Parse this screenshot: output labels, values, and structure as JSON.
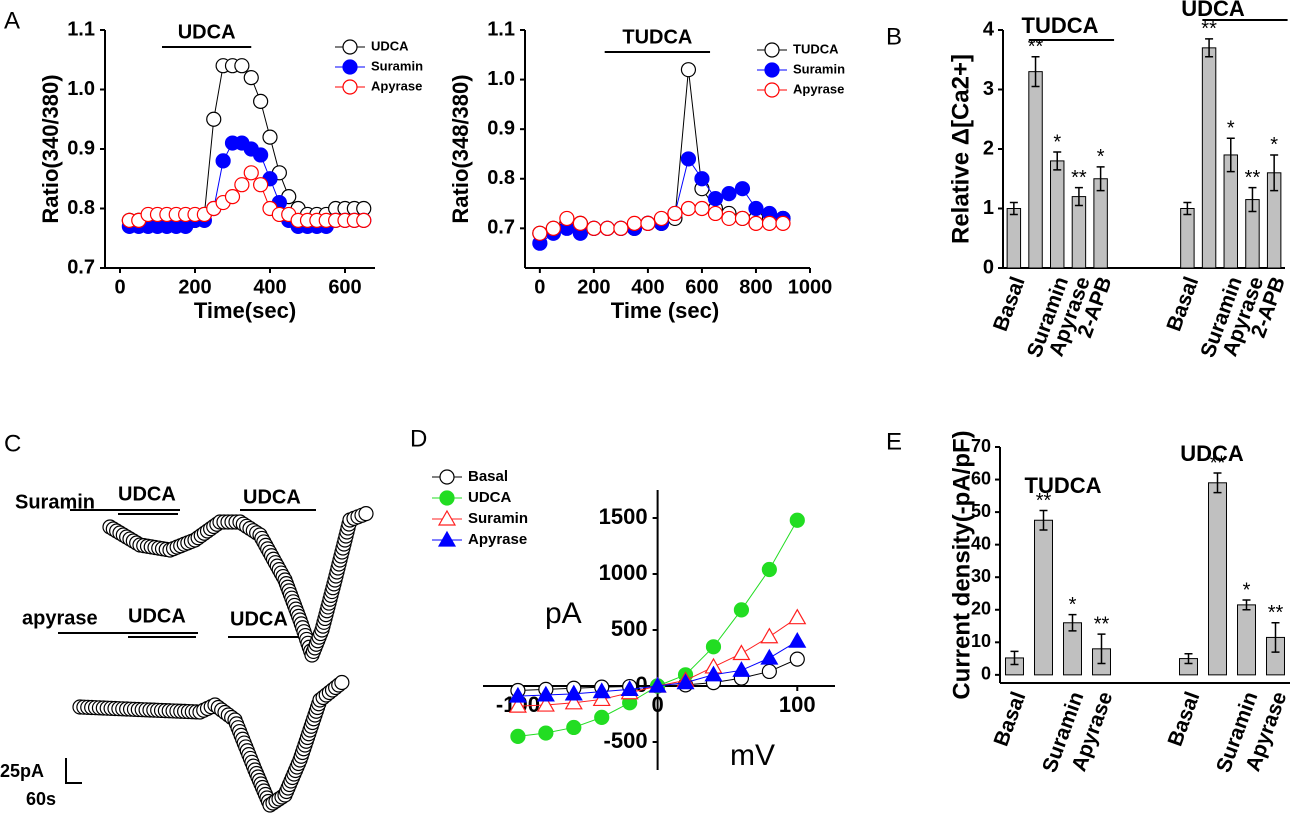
{
  "panel_labels": [
    "A",
    "B",
    "C",
    "D",
    "E"
  ],
  "chart_data": [
    {
      "type": "line",
      "xlabel": "Time(sec)",
      "ylabel": "Ratio(340/380)",
      "xlim": [
        -40,
        680
      ],
      "xticks": [
        0,
        200,
        400,
        600
      ],
      "ylim": [
        0.7,
        1.1
      ],
      "yticks": [
        0.7,
        0.8,
        0.9,
        {
          "value": 1,
          "label": "1.0"
        },
        1.1
      ],
      "legend": "upper right",
      "annotations": [
        {
          "text": "UDCA",
          "x": [
            112,
            350
          ]
        }
      ],
      "x": [
        25,
        50,
        75,
        100,
        125,
        150,
        175,
        200,
        225,
        250,
        275,
        300,
        325,
        350,
        375,
        400,
        425,
        450,
        475,
        500,
        525,
        550,
        575,
        600,
        625,
        650
      ],
      "series": [
        {
          "name": "UDCA",
          "color": "#000000",
          "marker": "circle",
          "filled": false,
          "values": [
            0.78,
            0.78,
            0.78,
            0.78,
            0.78,
            0.78,
            0.78,
            0.78,
            0.79,
            0.95,
            1.04,
            1.04,
            1.04,
            1.02,
            0.98,
            0.92,
            0.86,
            0.82,
            0.8,
            0.79,
            0.79,
            0.79,
            0.8,
            0.8,
            0.8,
            0.8
          ]
        },
        {
          "name": "Suramin",
          "color": "#0000ff",
          "marker": "circle",
          "filled": true,
          "values": [
            0.77,
            0.77,
            0.77,
            0.77,
            0.77,
            0.77,
            0.77,
            0.78,
            0.78,
            0.8,
            0.88,
            0.91,
            0.91,
            0.9,
            0.89,
            0.85,
            0.81,
            0.78,
            0.77,
            0.77,
            0.77,
            0.77,
            0.78,
            0.78,
            0.78,
            0.78
          ]
        },
        {
          "name": "Apyrase",
          "color": "#ff0000",
          "marker": "circle",
          "filled": false,
          "values": [
            0.78,
            0.78,
            0.79,
            0.79,
            0.79,
            0.79,
            0.79,
            0.79,
            0.79,
            0.8,
            0.81,
            0.82,
            0.84,
            0.86,
            0.84,
            0.8,
            0.79,
            0.79,
            0.78,
            0.78,
            0.78,
            0.78,
            0.78,
            0.78,
            0.78,
            0.78
          ]
        }
      ]
    },
    {
      "type": "line",
      "xlabel": "Time (sec)",
      "ylabel": "Ratio(348/380)",
      "xlim": [
        -55,
        1000
      ],
      "xticks": [
        0,
        200,
        400,
        600,
        800,
        1000
      ],
      "ylim": [
        0.62,
        1.1
      ],
      "yticks": [
        0.7,
        0.8,
        0.9,
        {
          "value": 1,
          "label": "1.0"
        },
        1.1
      ],
      "legend": "upper right",
      "annotations": [
        {
          "text": "TUDCA",
          "x": [
            240,
            630
          ]
        }
      ],
      "x": [
        0,
        50,
        100,
        150,
        200,
        250,
        300,
        350,
        400,
        450,
        500,
        550,
        600,
        650,
        700,
        750,
        800,
        850,
        900
      ],
      "series": [
        {
          "name": "TUDCA",
          "color": "#000000",
          "marker": "circle",
          "filled": false,
          "values": [
            0.69,
            0.7,
            0.71,
            0.71,
            0.7,
            0.7,
            0.7,
            0.7,
            0.71,
            0.71,
            0.72,
            1.02,
            0.78,
            0.74,
            0.73,
            0.72,
            0.72,
            0.72,
            0.72
          ]
        },
        {
          "name": "Suramin",
          "color": "#0000ff",
          "marker": "circle",
          "filled": true,
          "values": [
            0.67,
            0.69,
            0.7,
            0.69,
            0.7,
            0.7,
            0.7,
            0.7,
            0.71,
            0.71,
            0.73,
            0.84,
            0.8,
            0.76,
            0.77,
            0.78,
            0.74,
            0.73,
            0.72
          ]
        },
        {
          "name": "Apyrase",
          "color": "#ff0000",
          "marker": "circle",
          "filled": false,
          "values": [
            0.69,
            0.7,
            0.72,
            0.71,
            0.7,
            0.7,
            0.7,
            0.71,
            0.71,
            0.72,
            0.73,
            0.74,
            0.74,
            0.73,
            0.72,
            0.72,
            0.71,
            0.71,
            0.71
          ]
        }
      ]
    },
    {
      "type": "bar",
      "ylabel": "Relative Δ[Ca2+]",
      "groups": [
        "TUDCA",
        "UDCA"
      ],
      "color": "#c0c0c0",
      "ylim": [
        0,
        4
      ],
      "yticks": [
        0,
        1,
        2,
        3,
        4
      ],
      "categories": [
        "Basal",
        null,
        "Suramin",
        "Apyrase",
        "2-APB",
        "Basal",
        null,
        "Suramin",
        "Apyrase",
        "2-APB"
      ],
      "values": [
        1,
        3.3,
        1.8,
        1.2,
        1.5,
        1,
        3.7,
        1.9,
        1.15,
        1.6
      ],
      "errors": [
        0.1,
        0.25,
        0.15,
        0.15,
        0.2,
        0.1,
        0.15,
        0.28,
        0.2,
        0.3
      ],
      "significance": [
        null,
        "**",
        "*",
        "**",
        "*",
        null,
        "**",
        "*",
        "**",
        "*"
      ]
    },
    {
      "type": "line",
      "xlabel": "mV",
      "ylabel": "pA",
      "axes": "origin",
      "xlim": [
        -125,
        127
      ],
      "xticks": [
        -100,
        0,
        100
      ],
      "ylim": [
        -750,
        1750
      ],
      "yticks": [
        -500,
        0,
        500,
        1000,
        1500
      ],
      "legend": "upper left",
      "x": [
        -100,
        -80,
        -60,
        -40,
        -20,
        0,
        20,
        40,
        60,
        80,
        100
      ],
      "series": [
        {
          "name": "Basal",
          "color": "#000000",
          "marker": "circle",
          "filled": false,
          "values": [
            -40,
            -30,
            -20,
            -10,
            -5,
            0,
            10,
            30,
            70,
            130,
            240
          ]
        },
        {
          "name": "UDCA",
          "color": "#22dd22",
          "marker": "circle",
          "filled": true,
          "values": [
            -450,
            -420,
            -370,
            -280,
            -150,
            0,
            100,
            350,
            680,
            1040,
            1480
          ]
        },
        {
          "name": "Suramin",
          "color": "#ff2020",
          "marker": "triangle",
          "filled": false,
          "values": [
            -180,
            -170,
            -150,
            -120,
            -60,
            0,
            50,
            170,
            290,
            440,
            610
          ]
        },
        {
          "name": "Apyrase",
          "color": "#0000ff",
          "marker": "triangle",
          "filled": true,
          "values": [
            -90,
            -80,
            -70,
            -50,
            -30,
            0,
            30,
            100,
            140,
            250,
            400
          ]
        }
      ]
    },
    {
      "type": "bar",
      "ylabel": "Current density(-pA/pF)",
      "groups": [
        "TUDCA",
        "UDCA"
      ],
      "color": "#c0c0c0",
      "ylim": [
        -2.5,
        70
      ],
      "yticks": [
        0,
        10,
        20,
        30,
        40,
        50,
        60,
        70
      ],
      "categories": [
        "Basal",
        null,
        "Suramin",
        "Apyrase",
        "Basal",
        null,
        "Suramin",
        "Apyrase"
      ],
      "values": [
        5.2,
        47.5,
        16,
        8,
        5,
        59,
        21.5,
        11.5
      ],
      "errors": [
        2,
        3,
        2.5,
        4.5,
        1.5,
        3,
        1.5,
        4.5
      ],
      "significance": [
        null,
        "**",
        "*",
        "**",
        null,
        "**",
        "*",
        "**"
      ]
    }
  ],
  "panel_c": {
    "traces": [
      {
        "label": "Suramin",
        "drugs": [
          "UDCA",
          "UDCA"
        ]
      },
      {
        "label": "apyrase",
        "drugs": [
          "UDCA",
          "UDCA"
        ]
      }
    ],
    "scale": [
      "25pA",
      "60s"
    ]
  }
}
